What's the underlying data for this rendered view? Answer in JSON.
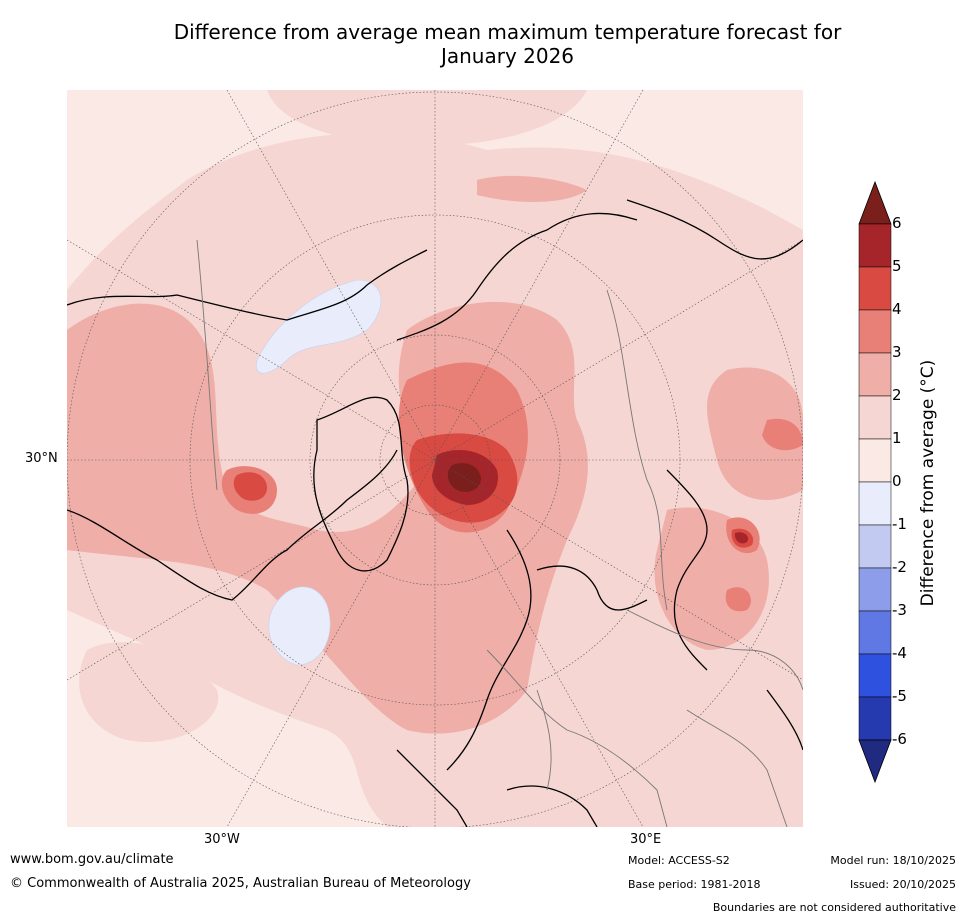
{
  "title_line1": "Difference from average mean maximum temperature forecast for",
  "title_line2": "January 2026",
  "map": {
    "lat_label": "30°N",
    "lon_labels": [
      "30°W",
      "30°E"
    ]
  },
  "colorbar": {
    "title": "Difference from average (°C)",
    "ticks": [
      "6",
      "5",
      "4",
      "3",
      "2",
      "1",
      "0",
      "-1",
      "-2",
      "-3",
      "-4",
      "-5",
      "-6"
    ],
    "colors_high_to_low": [
      "#a6252a",
      "#d94a43",
      "#e98077",
      "#efaea8",
      "#f5d6d2",
      "#fbe9e6",
      "#e9edfb",
      "#c2caf1",
      "#8d9de9",
      "#5f78e3",
      "#2f51e0",
      "#263ab0"
    ],
    "over_color": "#7a1f1c",
    "under_color": "#1f2a80"
  },
  "footer": {
    "website": "www.bom.gov.au/climate",
    "copyright": "© Commonwealth of Australia 2025, Australian Bureau of Meteorology",
    "model": "Model: ACCESS-S2",
    "base_period": "Base period: 1981-2018",
    "model_run": "Model run: 18/10/2025",
    "issued": "Issued: 20/10/2025",
    "disclaimer": "Boundaries are not considered authoritative"
  }
}
